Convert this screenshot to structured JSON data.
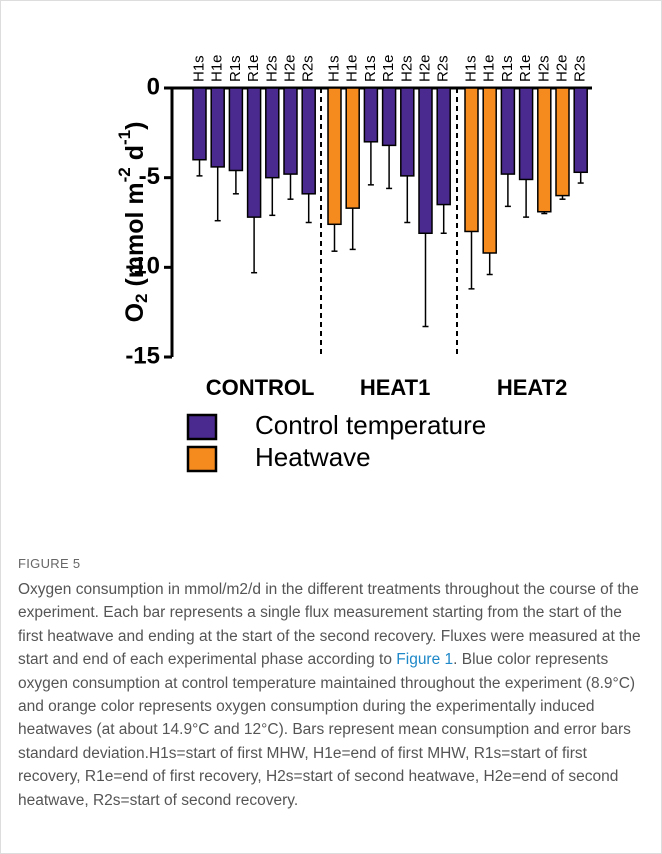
{
  "figure_label": "FIGURE 5",
  "caption": {
    "before": "Oxygen consumption in mmol/m2/d in the different treatments throughout the course of the experiment. Each bar represents a single flux measurement starting from the start of the first heatwave and ending at the start of the second recovery. Fluxes were measured at the start and end of each experimental phase according to ",
    "link": "Figure 1",
    "after": ". Blue color represents oxygen consumption at control temperature maintained throughout the experiment (8.9°C) and orange color represents oxygen consumption during the experimentally induced heatwaves (at about 14.9°C and 12°C). Bars represent mean consumption and error bars standard deviation.H1s=start of first MHW, H1e=end of first MHW, R1s=start of first recovery, R1e=end of first recovery, H2s=start of second heatwave, H2e=end of second heatwave, R2s=start of second recovery."
  },
  "chart_data": {
    "type": "bar",
    "ylabel_parts": [
      "O",
      "2",
      " (mmol m",
      "-2",
      " d",
      "-1",
      ")"
    ],
    "ylim": [
      -15,
      0
    ],
    "yticks": [
      0,
      -5,
      -10,
      -15
    ],
    "series": [
      {
        "name": "Control temperature",
        "color": "#4a2a8f"
      },
      {
        "name": "Heatwave",
        "color": "#f58a1f"
      }
    ],
    "groups": [
      {
        "name": "CONTROL",
        "categories": [
          "H1s",
          "H1e",
          "R1s",
          "R1e",
          "H2s",
          "H2e",
          "R2s"
        ],
        "values": [
          -4.0,
          -4.4,
          -4.6,
          -7.2,
          -5.0,
          -4.8,
          -5.9
        ],
        "errors": [
          0.9,
          3.0,
          1.3,
          3.1,
          2.1,
          1.4,
          1.6
        ],
        "series_index": [
          0,
          0,
          0,
          0,
          0,
          0,
          0
        ]
      },
      {
        "name": "HEAT1",
        "categories": [
          "H1s",
          "H1e",
          "R1s",
          "R1e",
          "H2s",
          "H2e",
          "R2s"
        ],
        "values": [
          -7.6,
          -6.7,
          -3.0,
          -3.2,
          -4.9,
          -8.1,
          -6.5
        ],
        "errors": [
          1.5,
          2.3,
          2.4,
          2.4,
          2.6,
          5.2,
          1.6
        ],
        "series_index": [
          1,
          1,
          0,
          0,
          0,
          0,
          0
        ]
      },
      {
        "name": "HEAT2",
        "categories": [
          "H1s",
          "H1e",
          "R1s",
          "R1e",
          "H2s",
          "H2e",
          "R2s"
        ],
        "values": [
          -8.0,
          -9.2,
          -4.8,
          -5.1,
          -6.9,
          -6.0,
          -4.7
        ],
        "errors": [
          3.2,
          1.2,
          1.8,
          2.1,
          0.1,
          0.2,
          0.6
        ],
        "series_index": [
          1,
          1,
          0,
          0,
          1,
          1,
          0
        ]
      }
    ]
  }
}
